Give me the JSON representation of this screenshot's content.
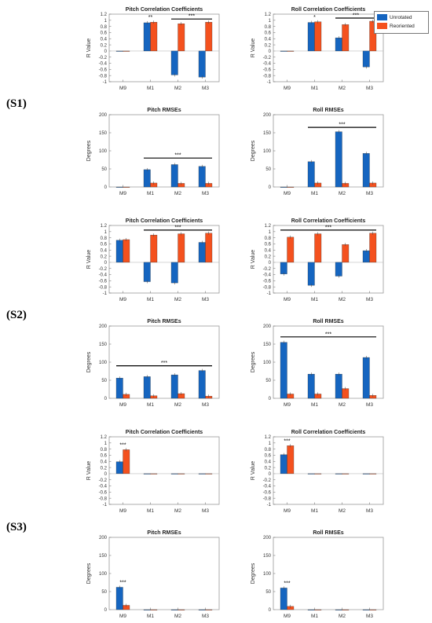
{
  "colors": {
    "unrotated": "#1565C0",
    "reoriented": "#F4511E",
    "axis": "#555555",
    "bar_border": "#333333"
  },
  "legend": {
    "items": [
      {
        "label": "Unrotated",
        "color": "#1565C0"
      },
      {
        "label": "Reoriented",
        "color": "#F4511E"
      }
    ]
  },
  "sections": [
    {
      "label": "(S1)"
    },
    {
      "label": "(S2)"
    },
    {
      "label": "(S3)"
    }
  ],
  "chart_data": [
    {
      "type": "bar",
      "section": "(S1)",
      "title": "Pitch Correlation Coefficients",
      "ylabel": "R Value",
      "categories": [
        "M9",
        "M1",
        "M2",
        "M3"
      ],
      "ylim": [
        -1,
        1.2
      ],
      "yticks": [
        "-1",
        "-0.8",
        "-0.6",
        "-0.4",
        "-0.2",
        "0",
        "0.2",
        "0.4",
        "0.6",
        "0.8",
        "1",
        "1.2"
      ],
      "ytick_values": [
        -1,
        -0.8,
        -0.6,
        -0.4,
        -0.2,
        0,
        0.2,
        0.4,
        0.6,
        0.8,
        1,
        1.2
      ],
      "series": [
        {
          "name": "Unrotated",
          "values": [
            0,
            0.92,
            -0.78,
            -0.85
          ]
        },
        {
          "name": "Reoriented",
          "values": [
            0,
            0.94,
            0.89,
            0.94
          ]
        }
      ],
      "significance": [
        {
          "label": "**",
          "from": 1,
          "to": 1
        },
        {
          "label": "***",
          "from": 2,
          "to": 3,
          "line": true
        }
      ]
    },
    {
      "type": "bar",
      "section": "(S1)",
      "title": "Roll Correlation Coefficients",
      "ylabel": "R Value",
      "categories": [
        "M9",
        "M1",
        "M2",
        "M3"
      ],
      "ylim": [
        -1,
        1.2
      ],
      "yticks": [
        "-1",
        "-0.8",
        "-0.6",
        "-0.4",
        "-0.2",
        "0",
        "0.2",
        "0.4",
        "0.6",
        "0.8",
        "1",
        "1.2"
      ],
      "ytick_values": [
        -1,
        -0.8,
        -0.6,
        -0.4,
        -0.2,
        0,
        0.2,
        0.4,
        0.6,
        0.8,
        1,
        1.2
      ],
      "series": [
        {
          "name": "Unrotated",
          "values": [
            0,
            0.93,
            0.43,
            -0.52
          ]
        },
        {
          "name": "Reoriented",
          "values": [
            0,
            0.95,
            0.86,
            0.97
          ]
        }
      ],
      "significance": [
        {
          "label": "*",
          "from": 1,
          "to": 1
        },
        {
          "label": "***",
          "from": 2,
          "to": 3,
          "line": true
        }
      ]
    },
    {
      "type": "bar",
      "section": "(S1)",
      "title": "Pitch RMSEs",
      "ylabel": "Degrees",
      "categories": [
        "M9",
        "M1",
        "M2",
        "M3"
      ],
      "ylim": [
        0,
        200
      ],
      "yticks": [
        "0",
        "50",
        "100",
        "150",
        "200"
      ],
      "ytick_values": [
        0,
        50,
        100,
        150,
        200
      ],
      "series": [
        {
          "name": "Unrotated",
          "values": [
            0,
            48,
            62,
            57
          ]
        },
        {
          "name": "Reoriented",
          "values": [
            0,
            11,
            10,
            10
          ]
        }
      ],
      "significance": [
        {
          "label": "***",
          "from": 1,
          "to": 3,
          "line": true,
          "y": 80
        }
      ]
    },
    {
      "type": "bar",
      "section": "(S1)",
      "title": "Roll RMSEs",
      "ylabel": "Degrees",
      "categories": [
        "M9",
        "M1",
        "M2",
        "M3"
      ],
      "ylim": [
        0,
        200
      ],
      "yticks": [
        "0",
        "50",
        "100",
        "150",
        "200"
      ],
      "ytick_values": [
        0,
        50,
        100,
        150,
        200
      ],
      "series": [
        {
          "name": "Unrotated",
          "values": [
            0,
            70,
            153,
            93
          ]
        },
        {
          "name": "Reoriented",
          "values": [
            0,
            11,
            10,
            11
          ]
        }
      ],
      "significance": [
        {
          "label": "***",
          "from": 1,
          "to": 3,
          "line": true,
          "y": 165
        }
      ]
    },
    {
      "type": "bar",
      "section": "(S2)",
      "title": "Pitch Correlation Coefficients",
      "ylabel": "R Value",
      "categories": [
        "M9",
        "M1",
        "M2",
        "M3"
      ],
      "ylim": [
        -1,
        1.2
      ],
      "yticks": [
        "-1",
        "-0.8",
        "-0.6",
        "-0.4",
        "-0.2",
        "0",
        "0.2",
        "0.4",
        "0.6",
        "0.8",
        "1",
        "1.2"
      ],
      "ytick_values": [
        -1,
        -0.8,
        -0.6,
        -0.4,
        -0.2,
        0,
        0.2,
        0.4,
        0.6,
        0.8,
        1,
        1.2
      ],
      "series": [
        {
          "name": "Unrotated",
          "values": [
            0.72,
            -0.63,
            -0.67,
            0.65
          ]
        },
        {
          "name": "Reoriented",
          "values": [
            0.74,
            0.89,
            0.93,
            0.95
          ]
        }
      ],
      "significance": [
        {
          "label": "***",
          "from": 1,
          "to": 3,
          "line": true,
          "y": 1.05
        }
      ]
    },
    {
      "type": "bar",
      "section": "(S2)",
      "title": "Roll Correlation Coefficients",
      "ylabel": "R Value",
      "categories": [
        "M9",
        "M1",
        "M2",
        "M3"
      ],
      "ylim": [
        -1,
        1.2
      ],
      "yticks": [
        "-1",
        "-0.8",
        "-0.6",
        "-0.4",
        "-0.2",
        "0",
        "0.2",
        "0.4",
        "0.6",
        "0.8",
        "1",
        "1.2"
      ],
      "ytick_values": [
        -1,
        -0.8,
        -0.6,
        -0.4,
        -0.2,
        0,
        0.2,
        0.4,
        0.6,
        0.8,
        1,
        1.2
      ],
      "series": [
        {
          "name": "Unrotated",
          "values": [
            -0.38,
            -0.75,
            -0.45,
            0.38
          ]
        },
        {
          "name": "Reoriented",
          "values": [
            0.82,
            0.93,
            0.58,
            0.95
          ]
        }
      ],
      "significance": [
        {
          "label": "***",
          "from": 0,
          "to": 3,
          "line": true,
          "y": 1.05
        }
      ]
    },
    {
      "type": "bar",
      "section": "(S2)",
      "title": "Pitch RMSEs",
      "ylabel": "Degrees",
      "categories": [
        "M9",
        "M1",
        "M2",
        "M3"
      ],
      "ylim": [
        0,
        200
      ],
      "yticks": [
        "0",
        "50",
        "100",
        "150",
        "200"
      ],
      "ytick_values": [
        0,
        50,
        100,
        150,
        200
      ],
      "series": [
        {
          "name": "Unrotated",
          "values": [
            56,
            60,
            65,
            77
          ]
        },
        {
          "name": "Reoriented",
          "values": [
            11,
            7,
            13,
            6
          ]
        }
      ],
      "significance": [
        {
          "label": "***",
          "from": 0,
          "to": 3,
          "line": true,
          "y": 90
        }
      ]
    },
    {
      "type": "bar",
      "section": "(S2)",
      "title": "Roll RMSEs",
      "ylabel": "Degrees",
      "categories": [
        "M9",
        "M1",
        "M2",
        "M3"
      ],
      "ylim": [
        0,
        200
      ],
      "yticks": [
        "0",
        "50",
        "100",
        "150",
        "200"
      ],
      "ytick_values": [
        0,
        50,
        100,
        150,
        200
      ],
      "series": [
        {
          "name": "Unrotated",
          "values": [
            155,
            67,
            67,
            113
          ]
        },
        {
          "name": "Reoriented",
          "values": [
            12,
            12,
            27,
            8
          ]
        }
      ],
      "significance": [
        {
          "label": "***",
          "from": 0,
          "to": 3,
          "line": true,
          "y": 170
        }
      ]
    },
    {
      "type": "bar",
      "section": "(S3)",
      "title": "Pitch Correlation Coefficients",
      "ylabel": "R Value",
      "categories": [
        "M9",
        "M1",
        "M2",
        "M3"
      ],
      "ylim": [
        -1,
        1.2
      ],
      "yticks": [
        "-1",
        "-0.8",
        "-0.6",
        "-0.4",
        "-0.2",
        "0",
        "0.2",
        "0.4",
        "0.6",
        "0.8",
        "1",
        "1.2"
      ],
      "ytick_values": [
        -1,
        -0.8,
        -0.6,
        -0.4,
        -0.2,
        0,
        0.2,
        0.4,
        0.6,
        0.8,
        1,
        1.2
      ],
      "series": [
        {
          "name": "Unrotated",
          "values": [
            0.39,
            0,
            0,
            0
          ]
        },
        {
          "name": "Reoriented",
          "values": [
            0.78,
            0,
            0,
            0
          ]
        }
      ],
      "significance": [
        {
          "label": "***",
          "from": 0,
          "to": 0
        }
      ]
    },
    {
      "type": "bar",
      "section": "(S3)",
      "title": "Roll Correlation Coefficients",
      "ylabel": "R Value",
      "categories": [
        "M9",
        "M1",
        "M2",
        "M3"
      ],
      "ylim": [
        -1,
        1.2
      ],
      "yticks": [
        "-1",
        "-0.8",
        "-0.6",
        "-0.4",
        "-0.2",
        "0",
        "0.2",
        "0.4",
        "0.6",
        "0.8",
        "1",
        "1.2"
      ],
      "ytick_values": [
        -1,
        -0.8,
        -0.6,
        -0.4,
        -0.2,
        0,
        0.2,
        0.4,
        0.6,
        0.8,
        1,
        1.2
      ],
      "series": [
        {
          "name": "Unrotated",
          "values": [
            0.62,
            0,
            0,
            0
          ]
        },
        {
          "name": "Reoriented",
          "values": [
            0.91,
            0,
            0,
            0
          ]
        }
      ],
      "significance": [
        {
          "label": "***",
          "from": 0,
          "to": 0
        }
      ]
    },
    {
      "type": "bar",
      "section": "(S3)",
      "title": "Pitch RMSEs",
      "ylabel": "Degrees",
      "categories": [
        "M9",
        "M1",
        "M2",
        "M3"
      ],
      "ylim": [
        0,
        200
      ],
      "yticks": [
        "0",
        "50",
        "100",
        "150",
        "200"
      ],
      "ytick_values": [
        0,
        50,
        100,
        150,
        200
      ],
      "series": [
        {
          "name": "Unrotated",
          "values": [
            62,
            0,
            0,
            0
          ]
        },
        {
          "name": "Reoriented",
          "values": [
            12,
            0,
            0,
            0
          ]
        }
      ],
      "significance": [
        {
          "label": "***",
          "from": 0,
          "to": 0
        }
      ]
    },
    {
      "type": "bar",
      "section": "(S3)",
      "title": "Roll RMSEs",
      "ylabel": "Degrees",
      "categories": [
        "M9",
        "M1",
        "M2",
        "M3"
      ],
      "ylim": [
        0,
        200
      ],
      "yticks": [
        "0",
        "50",
        "100",
        "150",
        "200"
      ],
      "ytick_values": [
        0,
        50,
        100,
        150,
        200
      ],
      "series": [
        {
          "name": "Unrotated",
          "values": [
            60,
            0,
            0,
            0
          ]
        },
        {
          "name": "Reoriented",
          "values": [
            9,
            0,
            0,
            0
          ]
        }
      ],
      "significance": [
        {
          "label": "***",
          "from": 0,
          "to": 0
        }
      ]
    }
  ]
}
